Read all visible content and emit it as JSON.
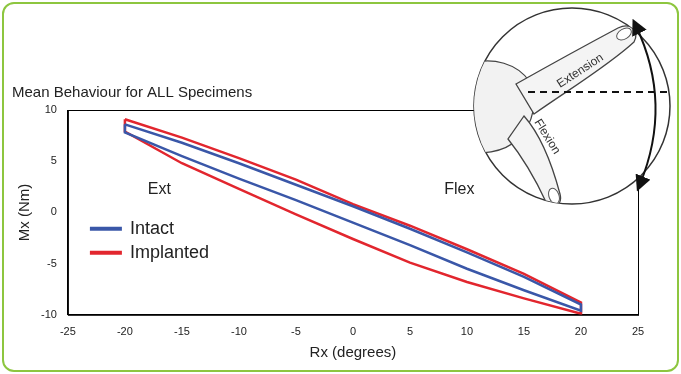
{
  "chart_data": {
    "type": "line",
    "title": "Mean Behaviour for ALL Specimens",
    "x_label": "Rx (degrees)",
    "y_label": "Mx (Nm)",
    "xlim": [
      -25,
      25
    ],
    "xticks": [
      -25,
      -20,
      -15,
      -10,
      -5,
      0,
      5,
      10,
      15,
      20,
      25
    ],
    "ylim": [
      -10,
      10
    ],
    "yticks": [
      -10,
      -5,
      0,
      5,
      10
    ],
    "grid": false,
    "legend": "lower left",
    "series": [
      {
        "name": "Intact",
        "color": "#3a57a8",
        "x": [
          -20,
          -15,
          -10,
          -5,
          0,
          5,
          10,
          15,
          20,
          20,
          15,
          10,
          5,
          0,
          -5,
          -10,
          -15,
          -20,
          -20
        ],
        "values": [
          8.6,
          6.8,
          4.8,
          2.7,
          0.6,
          -1.6,
          -3.9,
          -6.3,
          -9.0,
          -9.6,
          -7.6,
          -5.5,
          -3.2,
          -1.0,
          1.2,
          3.3,
          5.5,
          7.8,
          8.6
        ]
      },
      {
        "name": "Implanted",
        "color": "#e2262e",
        "x": [
          -20,
          -15,
          -10,
          -5,
          0,
          5,
          10,
          15,
          20,
          20,
          15,
          10,
          5,
          0,
          -5,
          -10,
          -15,
          -20,
          -20
        ],
        "values": [
          9.1,
          7.3,
          5.3,
          3.2,
          0.8,
          -1.3,
          -3.6,
          -6.0,
          -8.8,
          -9.9,
          -8.4,
          -6.8,
          -4.9,
          -2.6,
          -0.2,
          2.3,
          4.8,
          7.9,
          9.1
        ]
      }
    ],
    "annotations": [
      {
        "text": "Ext",
        "x": -18,
        "y": 2.2
      },
      {
        "text": "Flex",
        "x": 8,
        "y": 2.2
      }
    ],
    "inset": {
      "labels": [
        "Extension",
        "Flexion"
      ]
    }
  }
}
